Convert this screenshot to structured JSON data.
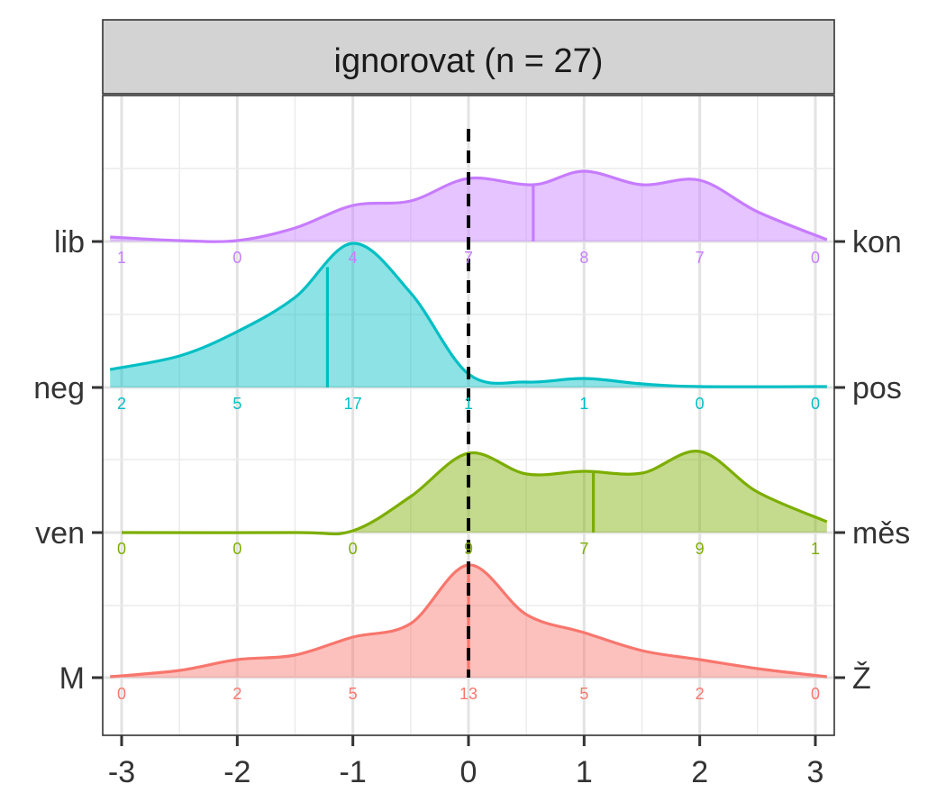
{
  "chart_data": {
    "type": "area",
    "facet_title": "ignorovat (n = 27)",
    "x_ticks": [
      "-3",
      "-2",
      "-1",
      "0",
      "1",
      "2",
      "3"
    ],
    "x_tick_values": [
      -3,
      -2,
      -1,
      0,
      1,
      2,
      3
    ],
    "xlim": [
      -3.1,
      3.1
    ],
    "reference_line_x": 0,
    "grid": true,
    "series": [
      {
        "left_label": "lib",
        "right_label": "kon",
        "color": "#C77CFF",
        "mean": 0.56,
        "count_positions": [
          -3,
          -2,
          -1,
          0,
          1,
          2,
          3
        ],
        "counts": [
          "1",
          "0",
          "4",
          "7",
          "8",
          "7",
          "0"
        ],
        "density": [
          [
            -3.1,
            0.05
          ],
          [
            -2.5,
            0.01
          ],
          [
            -2,
            0.01
          ],
          [
            -1.5,
            0.15
          ],
          [
            -1,
            0.4
          ],
          [
            -0.5,
            0.45
          ],
          [
            0,
            0.7
          ],
          [
            0.56,
            0.63
          ],
          [
            1,
            0.78
          ],
          [
            1.5,
            0.63
          ],
          [
            2,
            0.68
          ],
          [
            2.5,
            0.33
          ],
          [
            3.1,
            0.02
          ]
        ]
      },
      {
        "left_label": "neg",
        "right_label": "pos",
        "color": "#00BFC4",
        "mean": -1.22,
        "count_positions": [
          -3,
          -2,
          -1,
          0,
          1,
          2,
          3
        ],
        "counts": [
          "2",
          "5",
          "17",
          "1",
          "1",
          "0",
          "0"
        ],
        "density": [
          [
            -3.1,
            0.2
          ],
          [
            -2.5,
            0.35
          ],
          [
            -2,
            0.62
          ],
          [
            -1.5,
            1.0
          ],
          [
            -1,
            1.6
          ],
          [
            -0.5,
            1.05
          ],
          [
            0,
            0.15
          ],
          [
            0.5,
            0.06
          ],
          [
            1,
            0.1
          ],
          [
            1.5,
            0.04
          ],
          [
            2,
            0.01
          ],
          [
            3.1,
            0.01
          ]
        ]
      },
      {
        "left_label": "ven",
        "right_label": "měs",
        "color": "#7CAE00",
        "mean": 1.08,
        "count_positions": [
          -3,
          -2,
          -1,
          0,
          1,
          2,
          3
        ],
        "counts": [
          "0",
          "0",
          "0",
          "9",
          "7",
          "9",
          "1"
        ],
        "density": [
          [
            -3,
            0.0
          ],
          [
            -1.5,
            0.0
          ],
          [
            -1,
            0.02
          ],
          [
            -0.5,
            0.4
          ],
          [
            0,
            0.88
          ],
          [
            0.5,
            0.65
          ],
          [
            1,
            0.68
          ],
          [
            1.5,
            0.66
          ],
          [
            2,
            0.9
          ],
          [
            2.5,
            0.45
          ],
          [
            3.1,
            0.12
          ]
        ]
      },
      {
        "left_label": "M",
        "right_label": "Ž",
        "color": "#F8766D",
        "mean": 0.0,
        "count_positions": [
          -3,
          -2,
          -1,
          0,
          1,
          2,
          3
        ],
        "counts": [
          "0",
          "2",
          "5",
          "13",
          "5",
          "2",
          "0"
        ],
        "density": [
          [
            -3.1,
            0.01
          ],
          [
            -2.5,
            0.08
          ],
          [
            -2,
            0.2
          ],
          [
            -1.5,
            0.25
          ],
          [
            -1,
            0.45
          ],
          [
            -0.5,
            0.6
          ],
          [
            0,
            1.25
          ],
          [
            0.5,
            0.7
          ],
          [
            1,
            0.5
          ],
          [
            1.5,
            0.3
          ],
          [
            2,
            0.2
          ],
          [
            2.5,
            0.1
          ],
          [
            3.1,
            0.01
          ]
        ]
      }
    ]
  }
}
